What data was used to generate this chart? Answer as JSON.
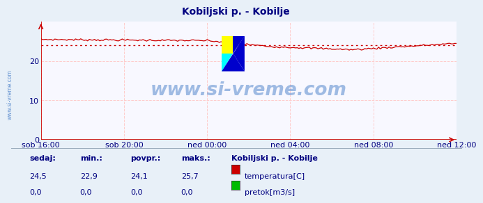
{
  "title": "Kobiljski p. - Kobilje",
  "title_color": "#000080",
  "bg_color": "#e8f0f8",
  "plot_bg_color": "#f8f8ff",
  "x_labels": [
    "sob 16:00",
    "sob 20:00",
    "ned 00:00",
    "ned 04:00",
    "ned 08:00",
    "ned 12:00"
  ],
  "ylim": [
    0,
    30
  ],
  "yticks": [
    0,
    10,
    20
  ],
  "grid_color": "#ffcccc",
  "temp_color": "#cc0000",
  "pretok_color": "#00bb00",
  "avg_line_color": "#cc0000",
  "avg_value": 24.1,
  "max_value": 25.7,
  "min_value": 22.9,
  "sedaj_value": 24.5,
  "watermark_text": "www.si-vreme.com",
  "watermark_color": "#5588cc",
  "axis_color": "#cc0000",
  "tick_label_color": "#000080",
  "tick_label_size": 8,
  "footer_label_color": "#000080",
  "legend_title": "Kobiljski p. - Kobilje",
  "left_watermark_color": "#5588cc",
  "left_watermark_text": "www.si-vreme.com"
}
